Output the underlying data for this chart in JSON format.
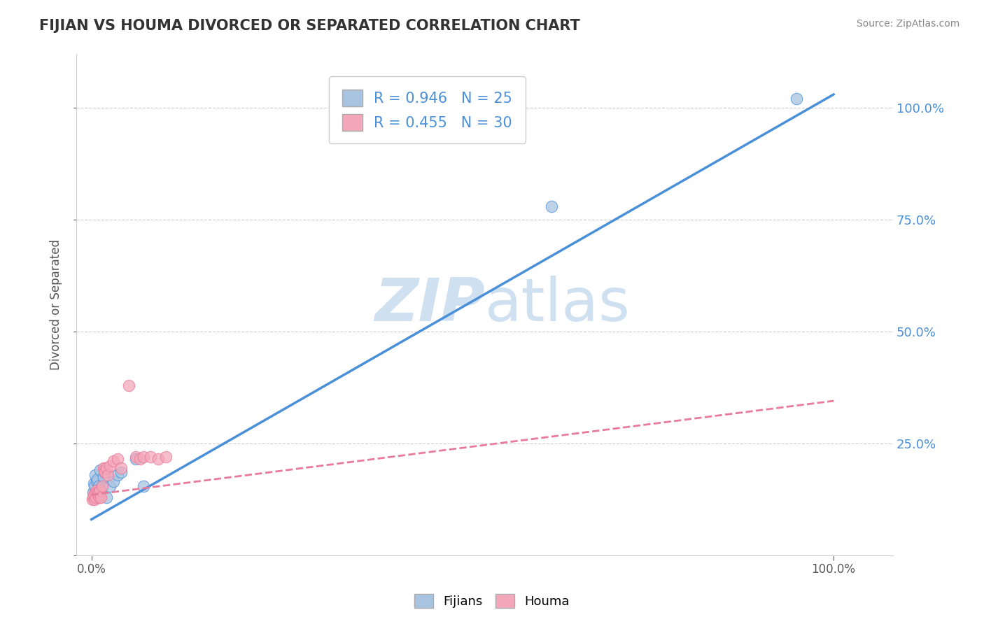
{
  "title": "FIJIAN VS HOUMA DIVORCED OR SEPARATED CORRELATION CHART",
  "source": "Source: ZipAtlas.com",
  "ylabel": "Divorced or Separated",
  "legend_fijians_label": "Fijians",
  "legend_houma_label": "Houma",
  "fijian_R": "0.946",
  "fijian_N": "25",
  "houma_R": "0.455",
  "houma_N": "30",
  "fijian_color": "#a8c4e0",
  "houma_color": "#f4a7b9",
  "fijian_line_color": "#4a90d9",
  "houma_line_color": "#e87a9a",
  "r_n_color": "#4a90d9",
  "background_color": "#ffffff",
  "watermark_color": "#cfe0f0",
  "fijian_scatter_x": [
    0.002,
    0.003,
    0.003,
    0.004,
    0.005,
    0.005,
    0.006,
    0.007,
    0.008,
    0.009,
    0.01,
    0.011,
    0.012,
    0.015,
    0.016,
    0.018,
    0.02,
    0.025,
    0.03,
    0.035,
    0.04,
    0.06,
    0.07,
    0.62,
    0.95
  ],
  "fijian_scatter_y": [
    0.14,
    0.13,
    0.16,
    0.155,
    0.14,
    0.18,
    0.14,
    0.165,
    0.17,
    0.13,
    0.155,
    0.145,
    0.19,
    0.155,
    0.175,
    0.185,
    0.13,
    0.155,
    0.165,
    0.18,
    0.185,
    0.215,
    0.155,
    0.78,
    1.02
  ],
  "houma_scatter_x": [
    0.001,
    0.002,
    0.003,
    0.004,
    0.005,
    0.006,
    0.007,
    0.008,
    0.009,
    0.01,
    0.011,
    0.012,
    0.013,
    0.015,
    0.016,
    0.017,
    0.018,
    0.02,
    0.022,
    0.025,
    0.03,
    0.035,
    0.04,
    0.05,
    0.06,
    0.065,
    0.07,
    0.08,
    0.09,
    0.1
  ],
  "houma_scatter_y": [
    0.125,
    0.13,
    0.135,
    0.125,
    0.14,
    0.13,
    0.145,
    0.14,
    0.135,
    0.14,
    0.13,
    0.145,
    0.13,
    0.155,
    0.195,
    0.19,
    0.185,
    0.195,
    0.18,
    0.2,
    0.21,
    0.215,
    0.195,
    0.38,
    0.22,
    0.215,
    0.22,
    0.22,
    0.215,
    0.22
  ],
  "fijian_line_x0": 0.0,
  "fijian_line_y0": 0.08,
  "fijian_line_x1": 1.0,
  "fijian_line_y1": 1.03,
  "houma_line_x0": 0.0,
  "houma_line_y0": 0.135,
  "houma_line_x1": 1.0,
  "houma_line_y1": 0.345,
  "ytick_positions": [
    0.0,
    0.25,
    0.5,
    0.75,
    1.0
  ],
  "ytick_labels_right": [
    "",
    "25.0%",
    "50.0%",
    "75.0%",
    "100.0%"
  ],
  "xlim": [
    -0.02,
    1.08
  ],
  "ylim": [
    0.0,
    1.12
  ]
}
